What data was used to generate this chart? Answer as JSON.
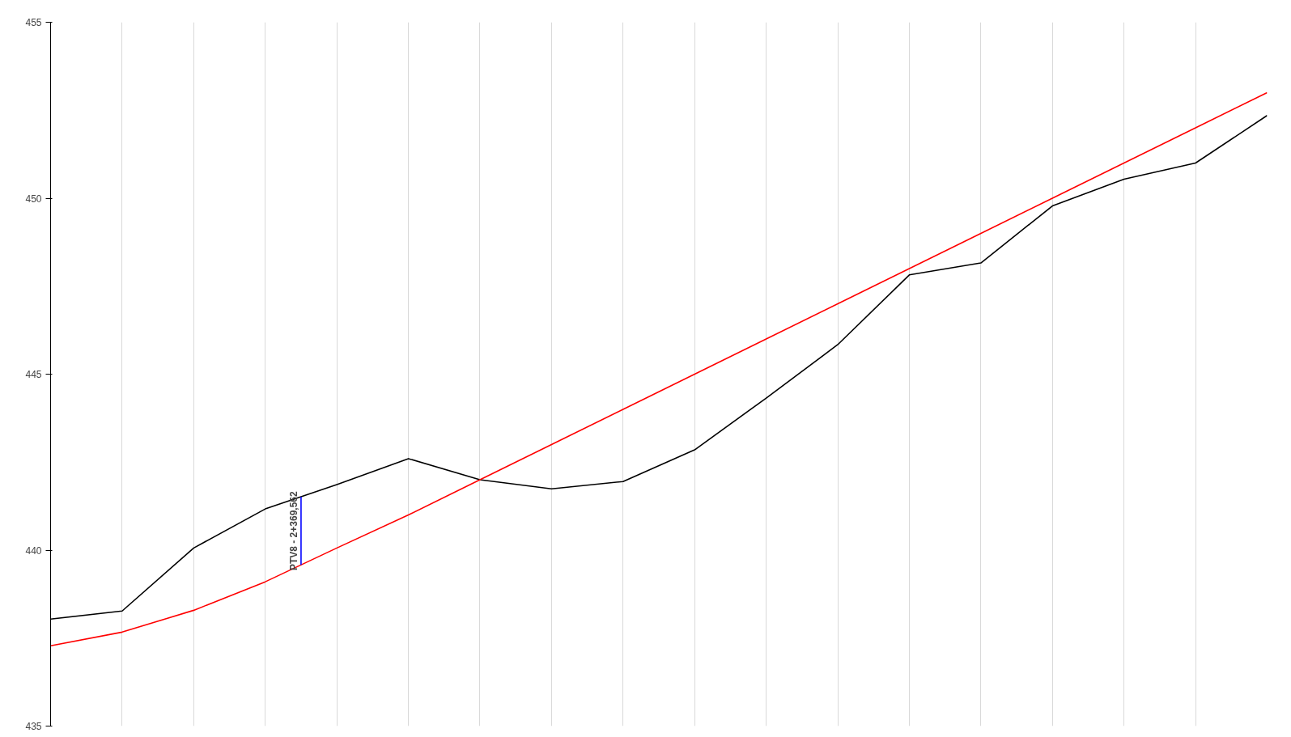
{
  "chart_data": {
    "type": "line",
    "categories": [
      null,
      null,
      null,
      null,
      null,
      null,
      null,
      null,
      null,
      null,
      null,
      null,
      null,
      null,
      null,
      null,
      null,
      null
    ],
    "ylim": [
      435,
      455
    ],
    "yticks": [
      435,
      440,
      445,
      450,
      455
    ],
    "tick_labels": "y",
    "grid": "x",
    "series": [
      {
        "color": "#000000",
        "values": [
          438.04,
          438.27,
          440.06,
          441.17,
          441.86,
          442.6,
          442.0,
          441.74,
          441.95,
          442.85,
          444.32,
          445.84,
          447.82,
          448.16,
          449.78,
          450.54,
          451.0,
          452.35
        ]
      },
      {
        "color": "#ff0000",
        "values": [
          437.28,
          437.67,
          438.29,
          439.1,
          440.06,
          441.0,
          442.0,
          443.0,
          444.0,
          445.0,
          446.0,
          447.0,
          448.0,
          449.0,
          450.0,
          451.0,
          452.0,
          453.0
        ]
      }
    ],
    "annotations": [
      "PTV8 - 2+369,562"
    ]
  }
}
